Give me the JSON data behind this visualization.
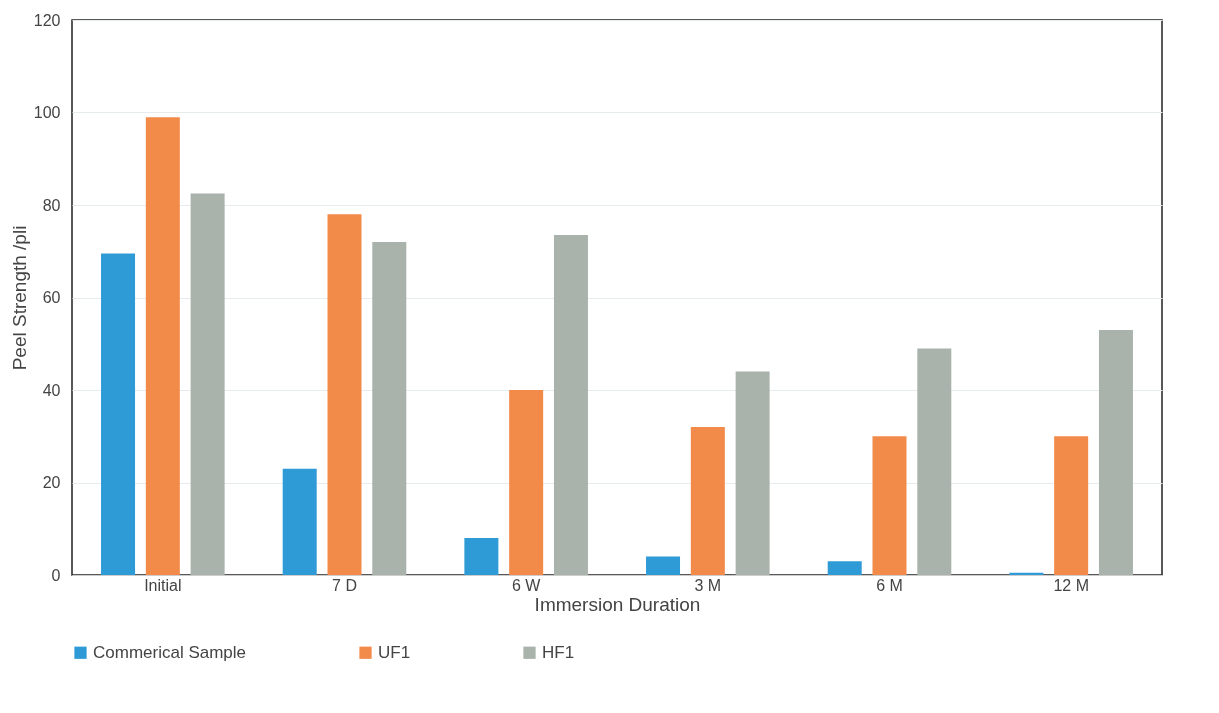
{
  "chart_data": {
    "type": "bar",
    "xlabel": "Immersion Duration",
    "ylabel": "Peel Strength /pli",
    "categories": [
      "Initial",
      "7 D",
      "6 W",
      "3 M",
      "6 M",
      "12 M"
    ],
    "series": [
      {
        "name": "Commerical Sample",
        "color": "#2e9bd6",
        "values": [
          69.5,
          23,
          8,
          4,
          3,
          0.5
        ]
      },
      {
        "name": "UF1",
        "color": "#f28a4a",
        "values": [
          99,
          78,
          40,
          32,
          30,
          30
        ]
      },
      {
        "name": "HF1",
        "color": "#a9b2ab",
        "values": [
          82.5,
          72,
          73.5,
          44,
          49,
          53
        ]
      }
    ],
    "ylim": [
      0,
      120
    ],
    "yticks": [
      0,
      20,
      40,
      60,
      80,
      100,
      120
    ],
    "grid": "y",
    "legend": "bottom"
  }
}
